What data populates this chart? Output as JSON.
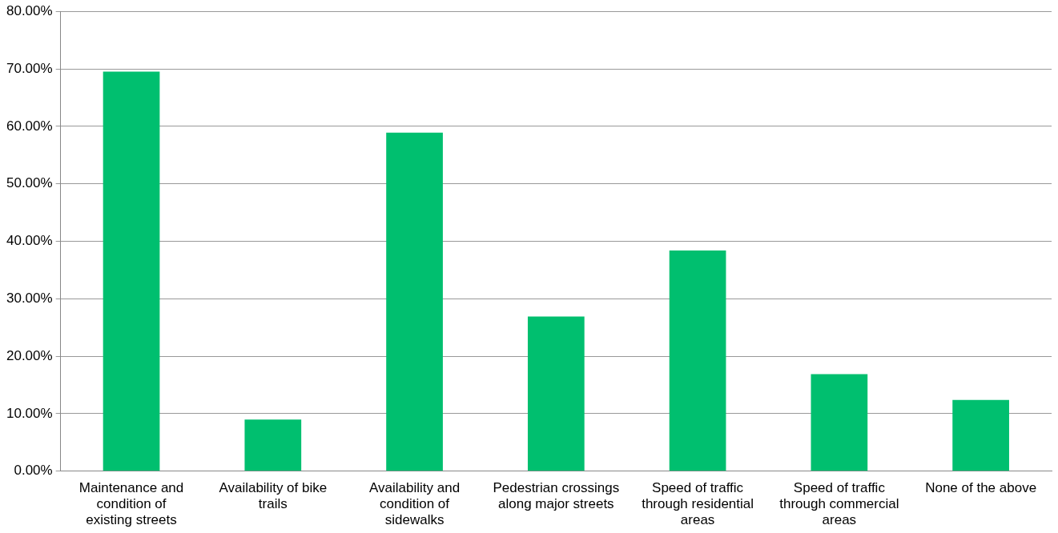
{
  "chart_data": {
    "type": "bar",
    "categories": [
      "Maintenance and condition of existing streets",
      "Availability of bike trails",
      "Availability and condition of sidewalks",
      "Pedestrian crossings along major streets",
      "Speed of traffic through residential areas",
      "Speed of traffic through commercial areas",
      "None of the above"
    ],
    "values": [
      69.5,
      9,
      58.9,
      26.9,
      38.4,
      16.9,
      12.4
    ],
    "color": "#00bf6f",
    "ylim": [
      0,
      80
    ],
    "yticks": [
      {
        "value": 0,
        "label": "0.00%"
      },
      {
        "value": 10,
        "label": "10.00%"
      },
      {
        "value": 20,
        "label": "20.00%"
      },
      {
        "value": 30,
        "label": "30.00%"
      },
      {
        "value": 40,
        "label": "40.00%"
      },
      {
        "value": 50,
        "label": "50.00%"
      },
      {
        "value": 60,
        "label": "60.00%"
      },
      {
        "value": 70,
        "label": "70.00%"
      },
      {
        "value": 80,
        "label": "80.00%"
      }
    ],
    "grid": "y",
    "legend": false
  }
}
